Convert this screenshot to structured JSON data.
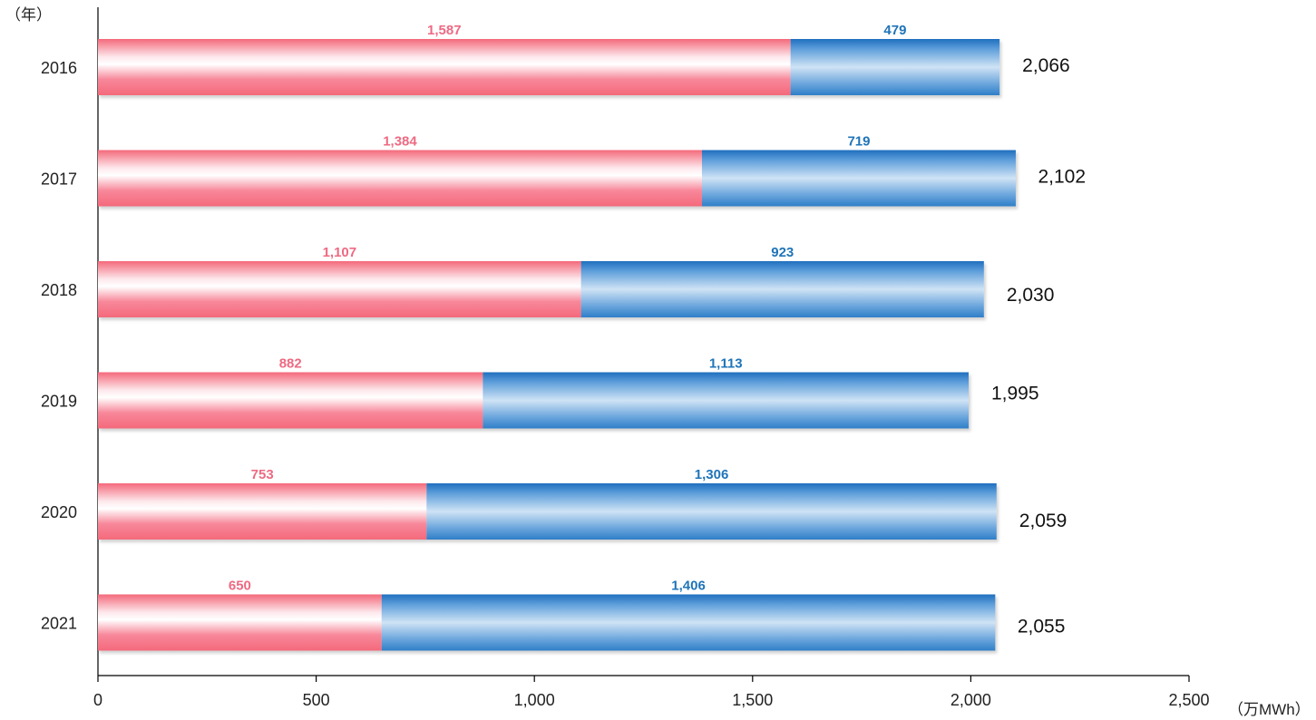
{
  "chart_data": {
    "type": "bar",
    "orientation": "horizontal",
    "stacked": true,
    "categories": [
      "2016",
      "2017",
      "2018",
      "2019",
      "2020",
      "2021"
    ],
    "series": [
      {
        "values": [
          1587,
          1384,
          1107,
          882,
          753,
          650
        ],
        "color": "#f4697b",
        "label_color": "#ee6a82"
      },
      {
        "values": [
          479,
          719,
          923,
          1113,
          1306,
          1406
        ],
        "color": "#2f7fc8",
        "label_color": "#1f74b8"
      }
    ],
    "totals": [
      2066,
      2102,
      2030,
      1995,
      2059,
      2055
    ],
    "segment_labels": [
      [
        "1,587",
        "1,384",
        "1,107",
        "882",
        "753",
        "650"
      ],
      [
        "479",
        "719",
        "923",
        "1,113",
        "1,306",
        "1,406"
      ]
    ],
    "total_labels": [
      "2,066",
      "2,102",
      "2,030",
      "1,995",
      "2,059",
      "2,055"
    ],
    "xlim": [
      0,
      2500
    ],
    "xticks": [
      0,
      500,
      1000,
      1500,
      2000,
      2500
    ],
    "xtick_labels": [
      "0",
      "500",
      "1,000",
      "1,500",
      "2,000",
      "2,500"
    ],
    "xlabel": "（万MWh）",
    "ylabel": "（年）",
    "grid": false,
    "legend": false
  }
}
